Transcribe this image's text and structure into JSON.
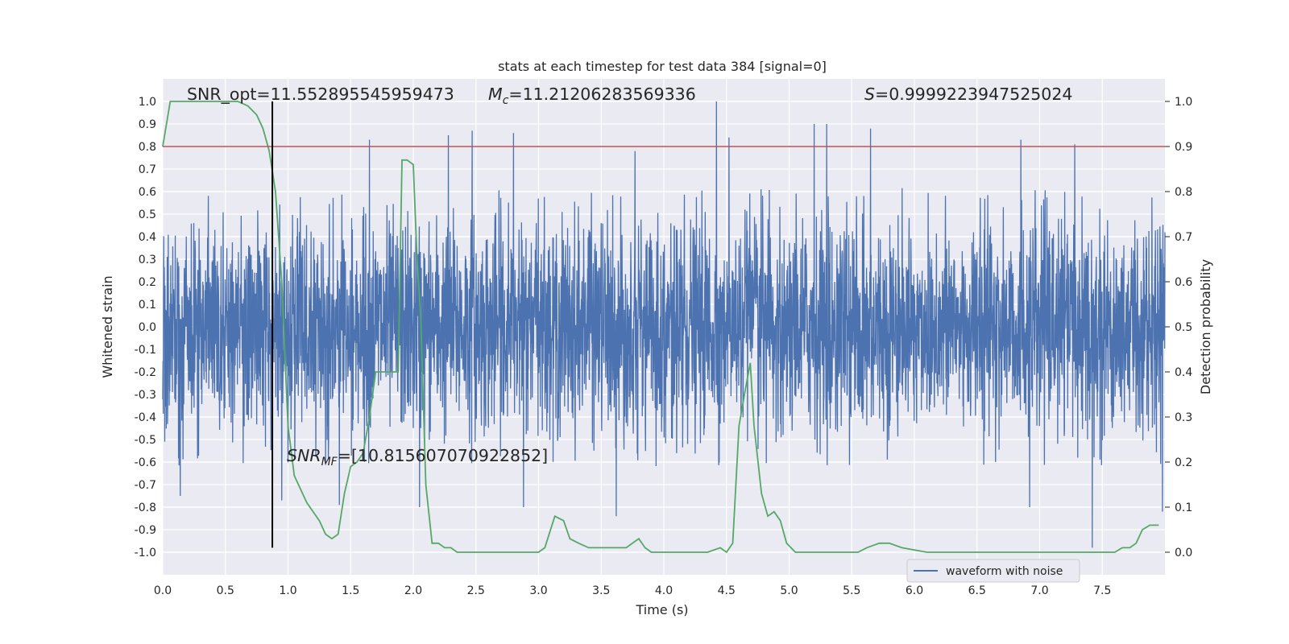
{
  "chart_data": {
    "type": "line",
    "title": "stats at each timestep for test data 384 [signal=0]",
    "xlabel": "Time (s)",
    "ylabel": "Whitened strain",
    "y2label": "Detection probability",
    "xlim": [
      0.0,
      8.0
    ],
    "ylim": [
      -1.1,
      1.1
    ],
    "y2lim": [
      -0.05,
      1.05
    ],
    "xticks": [
      "0.0",
      "0.5",
      "1.0",
      "1.5",
      "2.0",
      "2.5",
      "3.0",
      "3.5",
      "4.0",
      "4.5",
      "5.0",
      "5.5",
      "6.0",
      "6.5",
      "7.0",
      "7.5"
    ],
    "yticks": [
      "1.0",
      "0.9",
      "0.8",
      "0.7",
      "0.6",
      "0.5",
      "0.4",
      "0.3",
      "0.2",
      "0.1",
      "0.0",
      "-0.1",
      "-0.2",
      "-0.3",
      "-0.4",
      "-0.5",
      "-0.6",
      "-0.7",
      "-0.8",
      "-0.9",
      "-1.0"
    ],
    "y2ticks": [
      "1.0",
      "0.9",
      "0.8",
      "0.7",
      "0.6",
      "0.5",
      "0.4",
      "0.3",
      "0.2",
      "0.1",
      "0.0"
    ],
    "grid": true,
    "legend_position": "lower-right",
    "legend": [
      "waveform with noise"
    ],
    "colors": {
      "waveform": "#4c72b0",
      "probability": "#55a868",
      "threshold": "#c44e52",
      "marker": "#000000",
      "background": "#eaeaf2",
      "grid": "#ffffff"
    },
    "annotations": {
      "snr_opt": "SNR_opt=11.552895545959473",
      "mc_label": "M",
      "mc_sub": "c",
      "mc_value": "=11.21206283569336",
      "s_label": "S",
      "s_value": "=0.9999223947525024",
      "snr_mf_label": "SNR",
      "snr_mf_sub": "MF",
      "snr_mf_value": "=[10.815607070922852]"
    },
    "threshold_y2": 0.9,
    "marker_time": 0.875,
    "marker_y_range": [
      -0.98,
      1.0
    ],
    "waveform": {
      "description_values": "random noise envelope",
      "envelope_upper_typical": 0.42,
      "envelope_lower_typical": -0.42,
      "peaks": [
        {
          "t": 4.42,
          "v": 1.0
        },
        {
          "t": 4.52,
          "v": 0.84
        },
        {
          "t": 1.65,
          "v": 0.83
        },
        {
          "t": 2.28,
          "v": 0.85
        },
        {
          "t": 2.47,
          "v": 0.87
        },
        {
          "t": 2.8,
          "v": 0.86
        },
        {
          "t": 3.77,
          "v": 0.78
        },
        {
          "t": 5.2,
          "v": 0.9
        },
        {
          "t": 5.3,
          "v": 0.9
        },
        {
          "t": 5.65,
          "v": 0.88
        },
        {
          "t": 6.85,
          "v": 0.83
        },
        {
          "t": 7.28,
          "v": 0.81
        },
        {
          "t": 7.42,
          "v": -0.98
        },
        {
          "t": 2.05,
          "v": -0.8
        },
        {
          "t": 1.41,
          "v": -0.79
        },
        {
          "t": 2.88,
          "v": -0.8
        },
        {
          "t": 3.62,
          "v": -0.84
        },
        {
          "t": 7.98,
          "v": -0.82
        },
        {
          "t": 0.14,
          "v": -0.75
        },
        {
          "t": 0.95,
          "v": -0.77
        },
        {
          "t": 6.92,
          "v": -0.8
        }
      ]
    },
    "probability": {
      "x": [
        0.0,
        0.06,
        0.12,
        0.2,
        0.3,
        0.4,
        0.5,
        0.6,
        0.68,
        0.75,
        0.8,
        0.85,
        0.9,
        0.95,
        1.0,
        1.05,
        1.1,
        1.15,
        1.2,
        1.25,
        1.3,
        1.35,
        1.4,
        1.45,
        1.5,
        1.55,
        1.6,
        1.65,
        1.7,
        1.75,
        1.8,
        1.85,
        1.88,
        1.91,
        1.95,
        2.0,
        2.03,
        2.06,
        2.1,
        2.15,
        2.2,
        2.25,
        2.3,
        2.35,
        2.45,
        2.6,
        2.8,
        2.9,
        3.0,
        3.05,
        3.13,
        3.2,
        3.25,
        3.32,
        3.4,
        3.5,
        3.6,
        3.7,
        3.8,
        3.85,
        3.9,
        4.0,
        4.2,
        4.35,
        4.45,
        4.5,
        4.55,
        4.6,
        4.65,
        4.69,
        4.72,
        4.78,
        4.83,
        4.88,
        4.93,
        4.98,
        5.05,
        5.2,
        5.35,
        5.55,
        5.62,
        5.72,
        5.8,
        5.9,
        6.1,
        6.4,
        6.8,
        6.9,
        7.0,
        7.2,
        7.5,
        7.6,
        7.66,
        7.72,
        7.77,
        7.82,
        7.88,
        7.95
      ],
      "y": [
        0.9,
        1.0,
        1.0,
        1.0,
        1.0,
        1.0,
        1.0,
        1.0,
        0.99,
        0.97,
        0.94,
        0.89,
        0.8,
        0.6,
        0.28,
        0.17,
        0.14,
        0.11,
        0.09,
        0.07,
        0.04,
        0.03,
        0.04,
        0.13,
        0.19,
        0.2,
        0.22,
        0.3,
        0.4,
        0.4,
        0.4,
        0.4,
        0.4,
        0.87,
        0.87,
        0.86,
        0.65,
        0.52,
        0.15,
        0.02,
        0.02,
        0.01,
        0.01,
        0.0,
        0.0,
        0.0,
        0.0,
        0.0,
        0.0,
        0.01,
        0.08,
        0.07,
        0.03,
        0.02,
        0.01,
        0.01,
        0.01,
        0.01,
        0.03,
        0.01,
        0.0,
        0.0,
        0.0,
        0.0,
        0.01,
        0.0,
        0.02,
        0.28,
        0.36,
        0.42,
        0.28,
        0.13,
        0.08,
        0.09,
        0.07,
        0.02,
        0.0,
        0.0,
        0.0,
        0.0,
        0.01,
        0.02,
        0.02,
        0.01,
        0.0,
        0.0,
        0.0,
        0.0,
        0.0,
        0.0,
        0.0,
        0.0,
        0.01,
        0.01,
        0.02,
        0.05,
        0.06,
        0.06
      ]
    }
  }
}
